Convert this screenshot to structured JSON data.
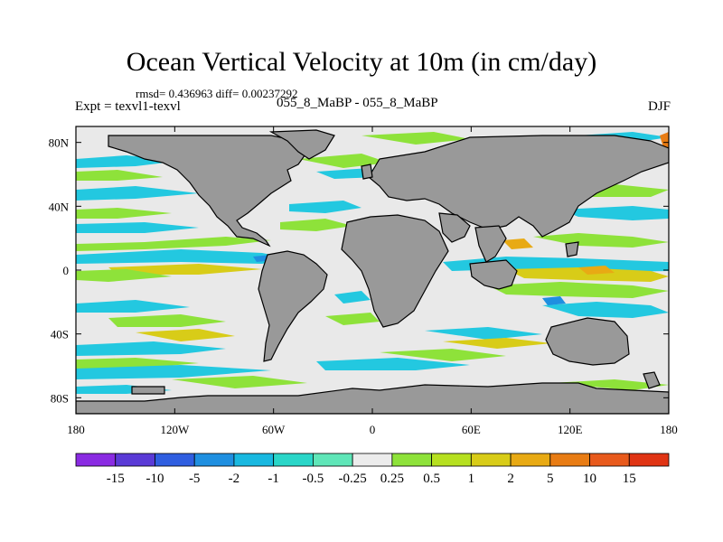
{
  "title": "Ocean Vertical Velocity at 10m (in cm/day)",
  "stats": "rmsd= 0.436963 diff= 0.00237292",
  "left_label": "Expt = texvl1-texvl",
  "center_label": "055_8_MaBP - 055_8_MaBP",
  "right_label": "DJF",
  "chart_data": {
    "type": "heatmap",
    "projection": "cylindrical-equidistant",
    "lon_range": [
      -180,
      180
    ],
    "lat_range": [
      -90,
      90
    ],
    "x_ticks": [
      {
        "value": -180,
        "label": "180"
      },
      {
        "value": -120,
        "label": "120W"
      },
      {
        "value": -60,
        "label": "60W"
      },
      {
        "value": 0,
        "label": "0"
      },
      {
        "value": 60,
        "label": "60E"
      },
      {
        "value": 120,
        "label": "120E"
      },
      {
        "value": 180,
        "label": "180"
      }
    ],
    "y_ticks": [
      {
        "value": 80,
        "label": "80N"
      },
      {
        "value": 40,
        "label": "40N"
      },
      {
        "value": 0,
        "label": "0"
      },
      {
        "value": -40,
        "label": "40S"
      },
      {
        "value": -80,
        "label": "80S"
      }
    ],
    "colorbar": {
      "labels": [
        "-15",
        "-10",
        "-5",
        "-2",
        "-1",
        "-0.5",
        "-0.25",
        "0.25",
        "0.5",
        "1",
        "2",
        "5",
        "10",
        "15"
      ],
      "colors": [
        "#8a2be2",
        "#5a3ad6",
        "#2f5ee0",
        "#1f8fe0",
        "#19b8e0",
        "#2ad6c8",
        "#5fe6b8",
        "#ececec",
        "#8ee23a",
        "#b6e020",
        "#d8cc18",
        "#e8aa14",
        "#e87c14",
        "#e85a1c",
        "#e03414"
      ]
    },
    "land_color": "#999999",
    "ocean_background": "#e9e9e9"
  }
}
